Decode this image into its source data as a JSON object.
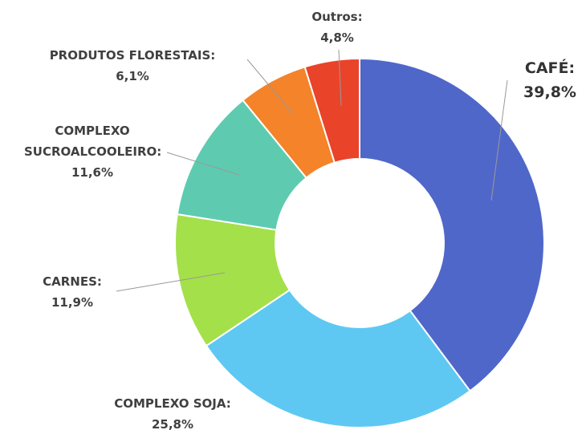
{
  "chart_data": {
    "type": "donut",
    "categories": [
      "CAFÉ:",
      "COMPLEXO SOJA:",
      "CARNES:",
      "COMPLEXO SUCROALCOOLEIRO:",
      "PRODUTOS  FLORESTAIS:",
      "Outros:"
    ],
    "values": [
      39.8,
      25.8,
      11.9,
      11.6,
      6.1,
      4.8
    ],
    "value_labels": [
      "39,8%",
      "25,8%",
      "11,9%",
      "11,6%",
      "6,1%",
      "4,8%"
    ],
    "colors": [
      "#4f67c9",
      "#5ec8f2",
      "#a4e04a",
      "#5ecbb0",
      "#f4832a",
      "#e9432a"
    ]
  }
}
